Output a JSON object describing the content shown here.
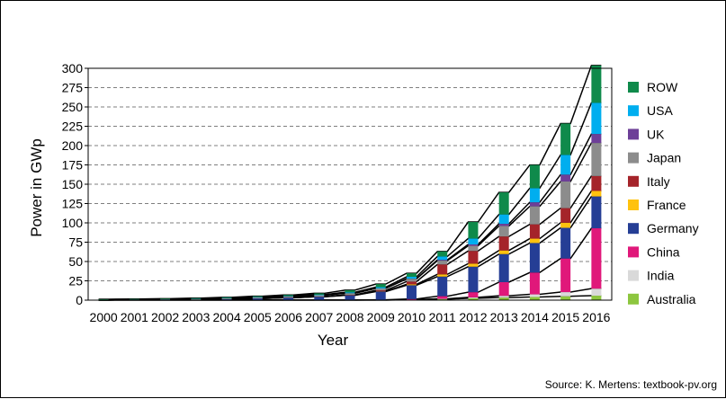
{
  "chart_data": {
    "type": "bar",
    "stacked": true,
    "title": "",
    "xlabel": "Year",
    "ylabel": "Power in GWp",
    "ylim": [
      0,
      300
    ],
    "yticks": [
      0,
      25,
      50,
      75,
      100,
      125,
      150,
      175,
      200,
      225,
      250,
      275,
      300
    ],
    "grid": "horizontal dashed",
    "legend_position": "right",
    "categories": [
      "2000",
      "2001",
      "2002",
      "2003",
      "2004",
      "2005",
      "2006",
      "2007",
      "2008",
      "2009",
      "2010",
      "2011",
      "2012",
      "2013",
      "2014",
      "2015",
      "2016"
    ],
    "series": [
      {
        "name": "Australia",
        "color": "#8dc63f",
        "values": [
          0.1,
          0.1,
          0.1,
          0.1,
          0.1,
          0.1,
          0.1,
          0.1,
          0.1,
          0.2,
          0.5,
          1.3,
          2.4,
          3.3,
          4.1,
          5.0,
          5.8
        ]
      },
      {
        "name": "India",
        "color": "#d9d9d9",
        "values": [
          0,
          0,
          0,
          0,
          0,
          0,
          0,
          0,
          0,
          0,
          0.1,
          0.5,
          1.2,
          2.3,
          3.4,
          5.4,
          9.1
        ]
      },
      {
        "name": "China",
        "color": "#e0187a",
        "values": [
          0,
          0,
          0,
          0.1,
          0.1,
          0.1,
          0.1,
          0.1,
          0.1,
          0.3,
          0.8,
          3.3,
          6.7,
          17.7,
          28.2,
          43.5,
          78.1
        ]
      },
      {
        "name": "Germany",
        "color": "#253e95",
        "values": [
          0.1,
          0.2,
          0.3,
          0.4,
          1.1,
          2.0,
          2.9,
          4.2,
          6.1,
          10.6,
          17.9,
          25.4,
          33.0,
          36.3,
          38.2,
          39.7,
          41.2
        ]
      },
      {
        "name": "France",
        "color": "#ffc20e",
        "values": [
          0,
          0,
          0,
          0,
          0,
          0,
          0,
          0,
          0.1,
          0.3,
          1.2,
          2.9,
          4.0,
          4.7,
          5.7,
          6.6,
          7.1
        ]
      },
      {
        "name": "Italy",
        "color": "#a5242a",
        "values": [
          0,
          0,
          0,
          0,
          0,
          0,
          0.1,
          0.1,
          0.5,
          1.2,
          3.5,
          12.8,
          16.4,
          18.1,
          18.5,
          18.9,
          19.3
        ]
      },
      {
        "name": "Japan",
        "color": "#8c8c8c",
        "values": [
          0.3,
          0.5,
          0.6,
          0.9,
          1.1,
          1.4,
          1.7,
          1.9,
          2.1,
          2.6,
          3.6,
          4.9,
          6.6,
          13.6,
          23.3,
          34.4,
          42.8
        ]
      },
      {
        "name": "UK",
        "color": "#6d3f98",
        "values": [
          0,
          0,
          0,
          0,
          0,
          0,
          0,
          0,
          0,
          0,
          0.1,
          1.0,
          1.8,
          2.8,
          5.2,
          8.9,
          11.6
        ]
      },
      {
        "name": "USA",
        "color": "#00aeef",
        "values": [
          0.1,
          0.1,
          0.2,
          0.3,
          0.4,
          0.5,
          0.6,
          0.8,
          1.2,
          1.6,
          2.5,
          4.4,
          7.7,
          12.1,
          18.3,
          25.6,
          40.3
        ]
      },
      {
        "name": "ROW",
        "color": "#0f8a4b",
        "values": [
          0.6,
          0.6,
          0.7,
          0.8,
          0.9,
          1.0,
          1.2,
          1.6,
          2.7,
          4.0,
          4.6,
          6.5,
          21.3,
          28.5,
          30.0,
          40.5,
          48.3
        ]
      }
    ]
  },
  "source": "Source: K. Mertens: textbook-pv.org"
}
